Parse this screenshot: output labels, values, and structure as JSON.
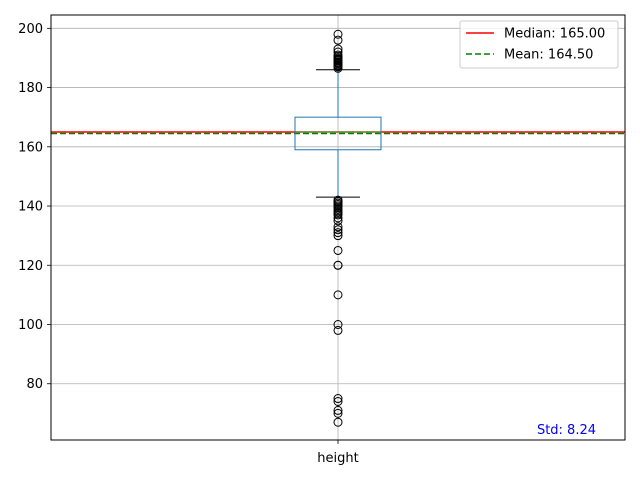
{
  "chart_data": {
    "type": "box",
    "categories": [
      "height"
    ],
    "ylim": [
      61,
      204.5
    ],
    "yticks": [
      80,
      100,
      120,
      140,
      160,
      180,
      200
    ],
    "grid": true,
    "box": {
      "q1": 159,
      "median": 165,
      "q3": 170,
      "whisker_low": 143,
      "whisker_high": 186,
      "outliers_high": [
        186.5,
        187,
        187.3,
        187.6,
        188,
        188.3,
        188.6,
        189,
        189.3,
        189.6,
        190,
        190.5,
        191,
        192,
        193,
        196,
        198
      ],
      "outliers_low": [
        142,
        141.5,
        141,
        140.5,
        140,
        139.5,
        139,
        138.5,
        138,
        137.5,
        137,
        136,
        135,
        133,
        132,
        131,
        130,
        125,
        120,
        120,
        110,
        100,
        98,
        75,
        74,
        71,
        70,
        67
      ]
    },
    "reference_lines": [
      {
        "name": "Median: 165.00",
        "value": 165,
        "color": "#ff0000",
        "style": "solid"
      },
      {
        "name": "Mean: 164.50",
        "value": 164.5,
        "color": "#008000",
        "style": "dashed"
      }
    ],
    "legend_position": "top-right",
    "annotation": {
      "text": "Std: 8.24",
      "color": "#0000ff",
      "position": "bottom-right"
    },
    "colors": {
      "box": "#1f77b4",
      "grid": "#b0b0b0"
    }
  }
}
